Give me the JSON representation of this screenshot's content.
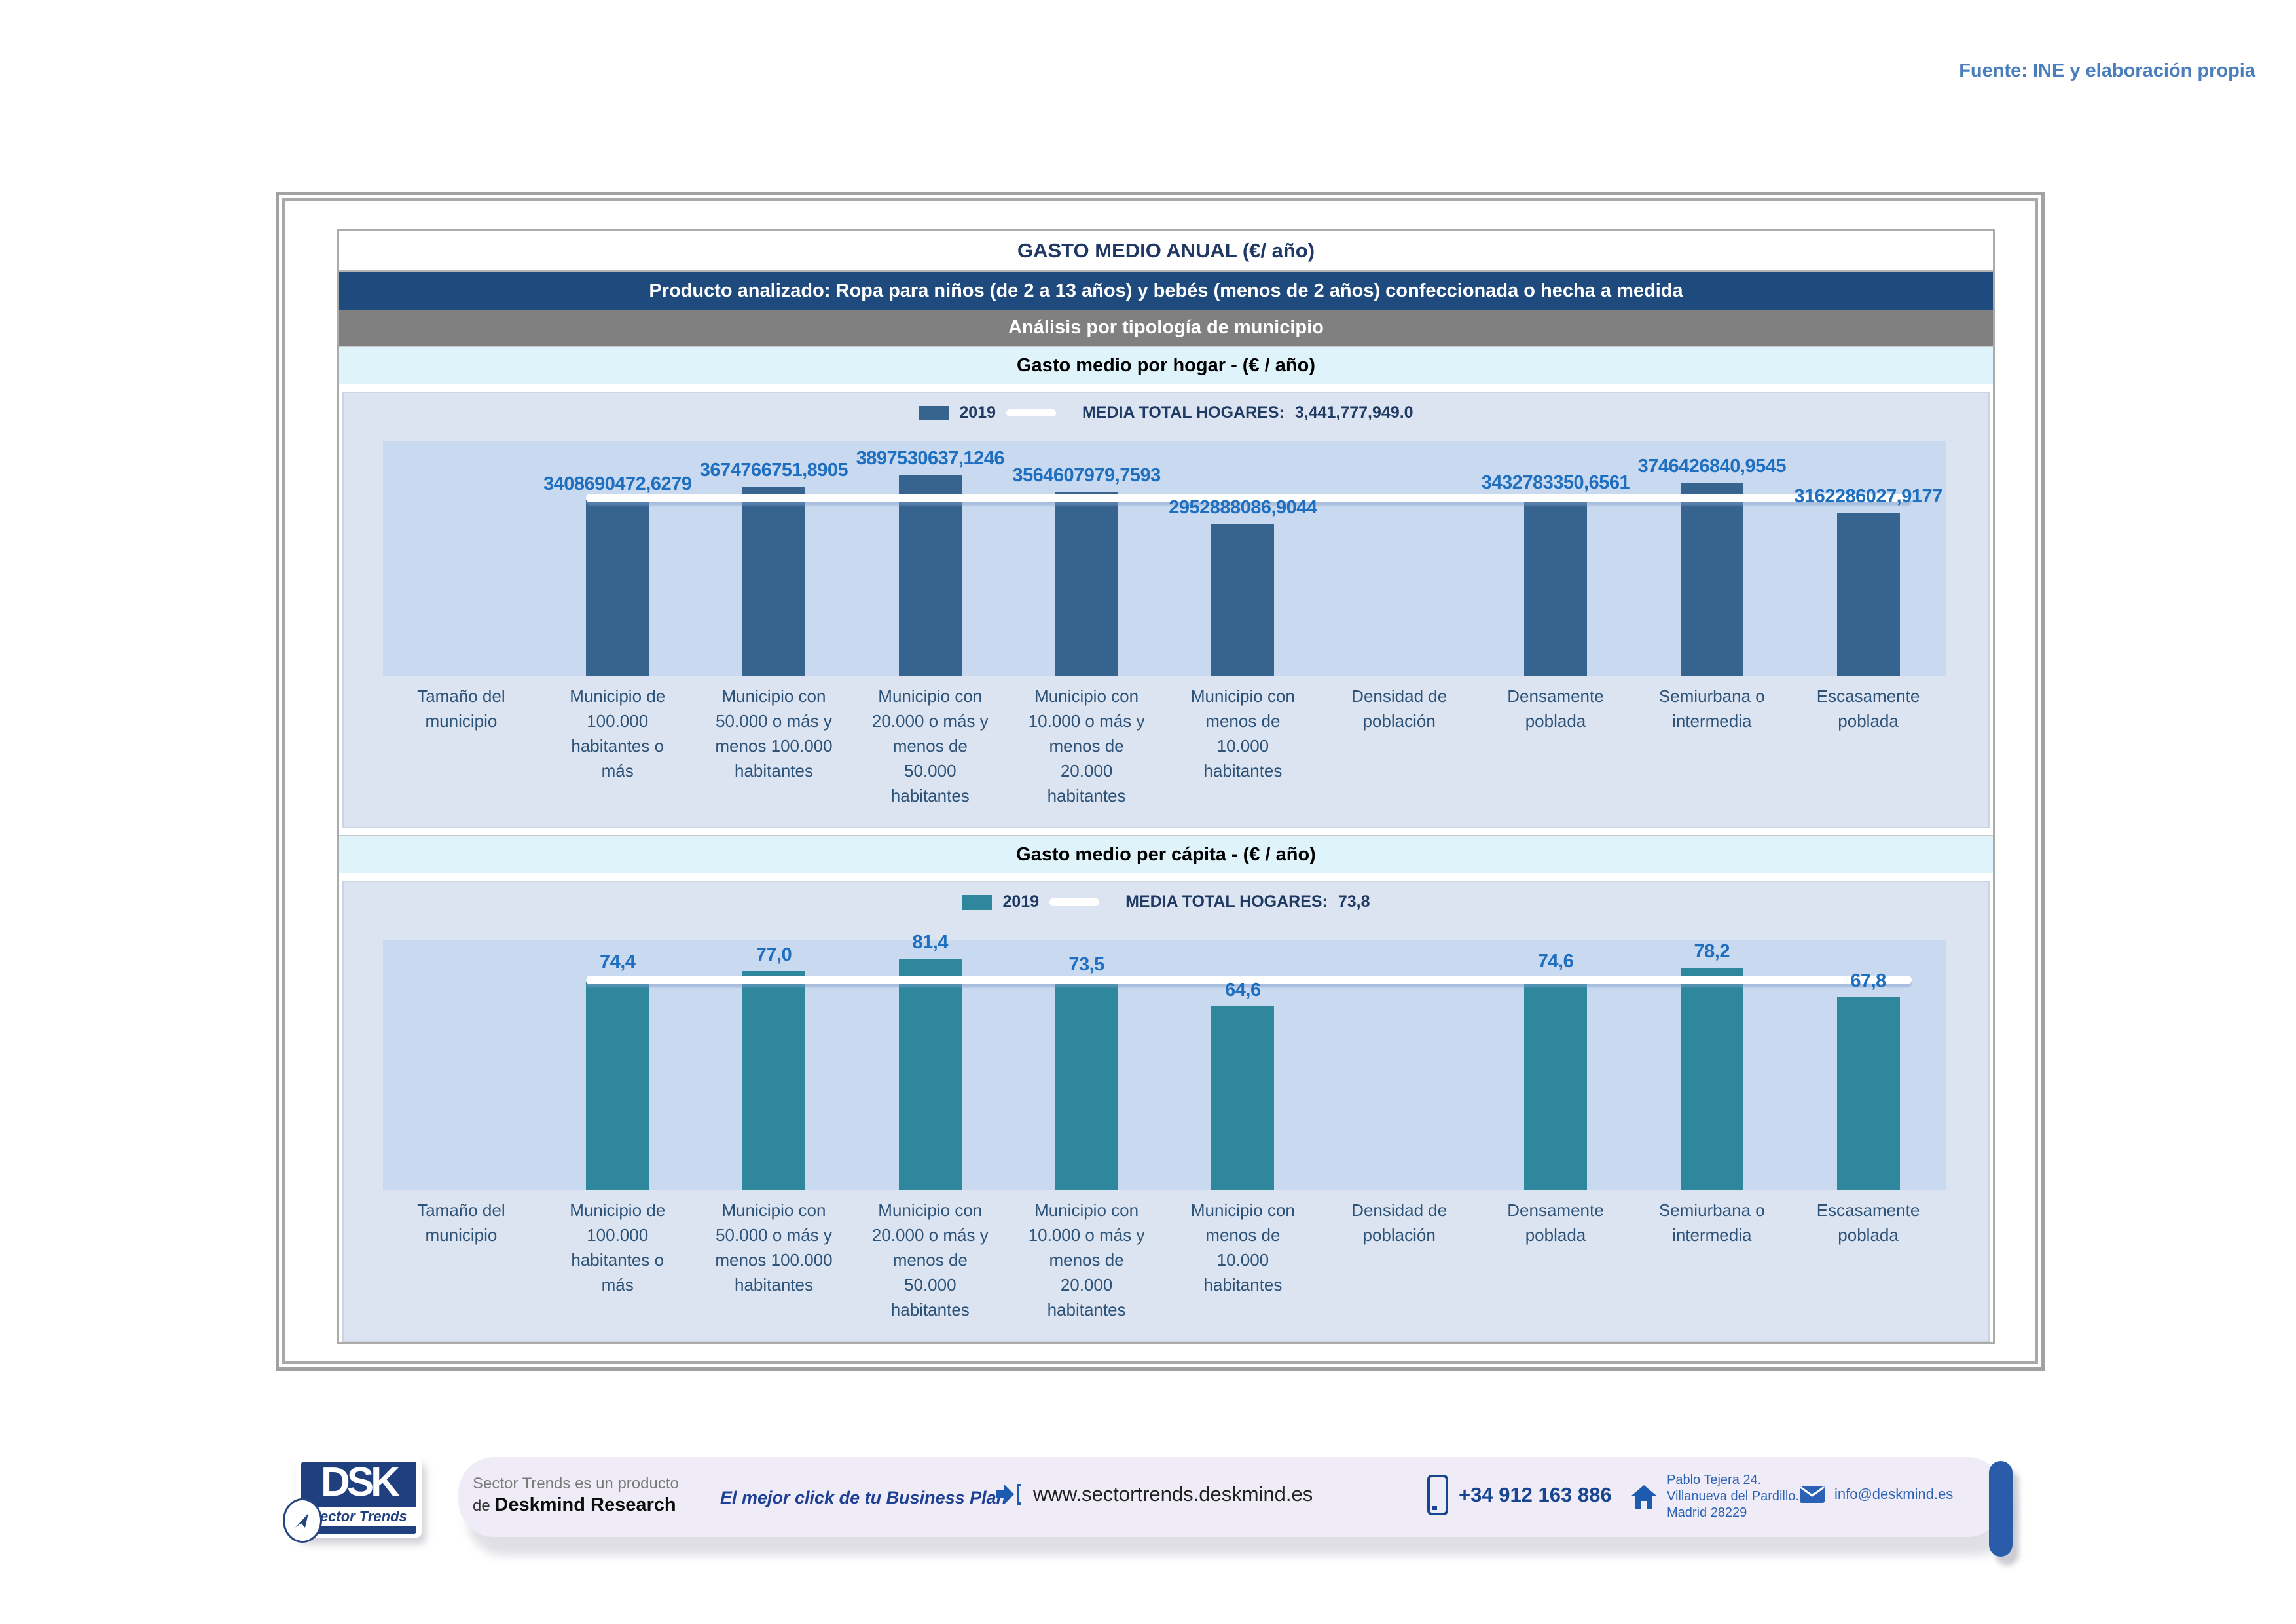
{
  "page": {
    "source_note": "Fuente: INE y elaboración propia"
  },
  "report": {
    "title": "GASTO MEDIO ANUAL (€/ año)",
    "product_line": "Producto analizado: Ropa para niños (de 2 a 13 años) y bebés (menos de 2 años) confeccionada o hecha a medida",
    "analysis_line": "Análisis por tipología de municipio",
    "section1_title": "Gasto medio por hogar -  (€ / año)",
    "section2_title": "Gasto medio per cápita -  (€ / año)"
  },
  "colors": {
    "navy_header_bg": "#1f4a7e",
    "gray_header_bg": "#808080",
    "cyan_band_bg": "#dff3fb",
    "panel_bg": "#dce4f1",
    "plot_bg": "#c9d9ef",
    "value_label_blue": "#1e6fc0",
    "category_label_blue": "#2d5379",
    "source_note_blue": "#4a7ebb",
    "footer_navy": "#17458f"
  },
  "chart_data": [
    {
      "type": "bar",
      "title": "Gasto medio por hogar - (€ / año)",
      "legend": {
        "series_label": "2019",
        "media_label": "MEDIA TOTAL  HOGARES:",
        "media_value_text": "3,441,777,949.0"
      },
      "categories": [
        "Tamaño del municipio",
        "Municipio de 100.000 habitantes o más",
        "Municipio con 50.000 o más y menos 100.000 habitantes",
        "Municipio con 20.000 o más y menos de 50.000 habitantes",
        "Municipio con 10.000 o más y menos de 20.000 habitantes",
        "Municipio con menos de 10.000 habitantes",
        "Densidad de población",
        "Densamente poblada",
        "Semiurbana o intermedia",
        "Escasamente poblada"
      ],
      "values": [
        null,
        3408690472.6279,
        3674766751.8905,
        3897530637.1246,
        3564607979.7593,
        2952888086.9044,
        null,
        3432783350.6561,
        3746426840.9545,
        3162286027.9177
      ],
      "value_labels": [
        "",
        "3408690472,6279",
        "3674766751,8905",
        "3897530637,1246",
        "3564607979,7593",
        "2952888086,9044",
        "",
        "3432783350,6561",
        "3746426840,9545",
        "3162286027,9177"
      ],
      "media_value": 3441777949.0,
      "ylim": [
        0,
        4560000000
      ],
      "bar_color": "#36648f",
      "media_line_color": "#ffffff",
      "legend_position": "top-center",
      "grid": false
    },
    {
      "type": "bar",
      "title": "Gasto medio per cápita - (€ / año)",
      "legend": {
        "series_label": "2019",
        "media_label": "MEDIA TOTAL  HOGARES:",
        "media_value_text": "73,8"
      },
      "categories": [
        "Tamaño del municipio",
        "Municipio de 100.000 habitantes o más",
        "Municipio con 50.000 o más y menos 100.000 habitantes",
        "Municipio con 20.000 o más y menos de 50.000 habitantes",
        "Municipio con 10.000 o más y menos de 20.000 habitantes",
        "Municipio con menos de 10.000 habitantes",
        "Densidad de población",
        "Densamente poblada",
        "Semiurbana o intermedia",
        "Escasamente poblada"
      ],
      "values": [
        null,
        74.4,
        77.0,
        81.4,
        73.5,
        64.6,
        null,
        74.6,
        78.2,
        67.8
      ],
      "value_labels": [
        "",
        "74,4",
        "77,0",
        "81,4",
        "73,5",
        "64,6",
        "",
        "74,6",
        "78,2",
        "67,8"
      ],
      "media_value": 73.8,
      "ylim": [
        0,
        88
      ],
      "bar_color": "#2f879e",
      "media_line_color": "#ffffff",
      "legend_position": "top-center",
      "grid": false
    }
  ],
  "footer": {
    "logo_text": "DSK",
    "logo_tagline": "Sector Trends",
    "note_line1": "Sector Trends es un producto",
    "note_line2_prefix": "de ",
    "note_line2_bold": "Deskmind Research",
    "slogan": "El mejor click de tu Business Plan",
    "website": "www.sectortrends.deskmind.es",
    "phone": "+34 912 163 886",
    "address_line1": "Pablo Tejera 24.",
    "address_line2": "Villanueva del Pardillo.",
    "address_line3": "Madrid 28229",
    "email": "info@deskmind.es"
  }
}
